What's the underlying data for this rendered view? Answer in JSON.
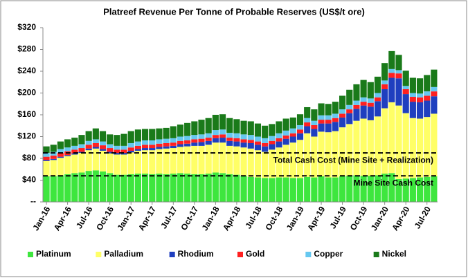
{
  "chart_data": {
    "type": "stacked_bar",
    "title": "Platreef Revenue Per Tonne of Probable Reserves (US$/t ore)",
    "categories": [
      "Jan-16",
      null,
      null,
      "Apr-16",
      null,
      null,
      "Jul-16",
      null,
      null,
      "Oct-16",
      null,
      null,
      "Jan-17",
      null,
      null,
      "Apr-17",
      null,
      null,
      "Jul-17",
      null,
      null,
      "Oct-17",
      null,
      null,
      "Jan-18",
      null,
      null,
      "Apr-18",
      null,
      null,
      "Jul-18",
      null,
      null,
      "Oct-18",
      null,
      null,
      "Jan-19",
      null,
      null,
      "Apr-19",
      null,
      null,
      "Jul-19",
      null,
      null,
      "Oct-19",
      null,
      null,
      "Jan-20",
      null,
      null,
      "Apr-20",
      null,
      null,
      "Jul-20",
      null
    ],
    "series": [
      {
        "name": "Platinum",
        "color": "#3ee63e",
        "values": [
          47,
          47,
          49,
          51,
          53,
          54,
          57,
          58,
          56,
          53,
          50,
          50,
          51,
          52,
          52,
          51,
          52,
          51,
          52,
          53,
          52,
          51,
          51,
          52,
          54,
          53,
          51,
          50,
          48,
          46,
          45,
          44,
          44,
          45,
          45,
          44,
          44,
          46,
          45,
          47,
          45,
          45,
          47,
          48,
          49,
          48,
          48,
          49,
          52,
          53,
          42,
          43,
          44,
          45,
          46,
          47
        ]
      },
      {
        "name": "Palladium",
        "color": "#ffff66",
        "values": [
          28,
          30,
          32,
          33,
          34,
          36,
          38,
          40,
          38,
          36,
          37,
          37,
          40,
          42,
          43,
          44,
          45,
          47,
          47,
          48,
          50,
          52,
          52,
          53,
          55,
          56,
          52,
          52,
          52,
          52,
          50,
          48,
          52,
          55,
          60,
          65,
          70,
          80,
          75,
          82,
          83,
          85,
          90,
          95,
          100,
          105,
          102,
          108,
          120,
          130,
          135,
          120,
          110,
          108,
          110,
          115
        ]
      },
      {
        "name": "Rhodium",
        "color": "#1f3fbf",
        "values": [
          2,
          2,
          2,
          2,
          2,
          2,
          3,
          3,
          3,
          3,
          3,
          3,
          3,
          3,
          4,
          4,
          4,
          4,
          4,
          5,
          5,
          6,
          7,
          7,
          8,
          9,
          9,
          9,
          9,
          10,
          10,
          10,
          10,
          11,
          11,
          11,
          12,
          13,
          14,
          15,
          16,
          17,
          18,
          20,
          22,
          24,
          25,
          28,
          35,
          45,
          50,
          35,
          30,
          30,
          30,
          32
        ]
      },
      {
        "name": "Gold",
        "color": "#ff2020",
        "values": [
          6,
          6,
          7,
          7,
          7,
          7,
          7,
          7,
          7,
          7,
          6,
          6,
          6,
          6,
          6,
          6,
          6,
          6,
          6,
          6,
          6,
          6,
          6,
          6,
          6,
          6,
          6,
          6,
          6,
          6,
          6,
          6,
          6,
          6,
          6,
          6,
          7,
          7,
          7,
          7,
          7,
          7,
          7,
          7,
          7,
          7,
          7,
          7,
          9,
          9,
          9,
          9,
          9,
          9,
          9,
          9
        ]
      },
      {
        "name": "Copper",
        "color": "#66c8f0",
        "values": [
          7,
          7,
          7,
          7,
          7,
          7,
          7,
          7,
          7,
          7,
          7,
          7,
          8,
          8,
          8,
          8,
          8,
          8,
          8,
          8,
          8,
          8,
          8,
          8,
          9,
          9,
          9,
          9,
          9,
          9,
          9,
          9,
          9,
          9,
          9,
          9,
          8,
          8,
          8,
          8,
          8,
          8,
          8,
          8,
          8,
          8,
          8,
          8,
          7,
          7,
          6,
          6,
          7,
          7,
          8,
          8
        ]
      },
      {
        "name": "Nickel",
        "color": "#1a7a1a",
        "values": [
          12,
          13,
          14,
          15,
          15,
          17,
          18,
          20,
          19,
          18,
          20,
          22,
          22,
          22,
          21,
          21,
          20,
          20,
          22,
          22,
          24,
          25,
          27,
          28,
          28,
          28,
          27,
          26,
          25,
          25,
          24,
          23,
          22,
          22,
          22,
          20,
          20,
          20,
          21,
          22,
          21,
          22,
          25,
          28,
          30,
          32,
          30,
          30,
          32,
          33,
          28,
          28,
          28,
          28,
          30,
          32
        ]
      }
    ],
    "ylim": [
      0,
      320
    ],
    "yticks": [
      {
        "value": 0,
        "label": "--"
      },
      {
        "value": 40,
        "label": "$40"
      },
      {
        "value": 80,
        "label": "$80"
      },
      {
        "value": 120,
        "label": "$120"
      },
      {
        "value": 160,
        "label": "$160"
      },
      {
        "value": 200,
        "label": "$200"
      },
      {
        "value": 240,
        "label": "$240"
      },
      {
        "value": 280,
        "label": "$280"
      },
      {
        "value": 320,
        "label": "$320"
      }
    ],
    "reference_lines": [
      {
        "value": 90,
        "label": "Total Cash Cost (Mine Site + Realization)"
      },
      {
        "value": 48,
        "label": "Mine Site Cash Cost"
      }
    ],
    "legend": "bottom",
    "grid": false
  }
}
